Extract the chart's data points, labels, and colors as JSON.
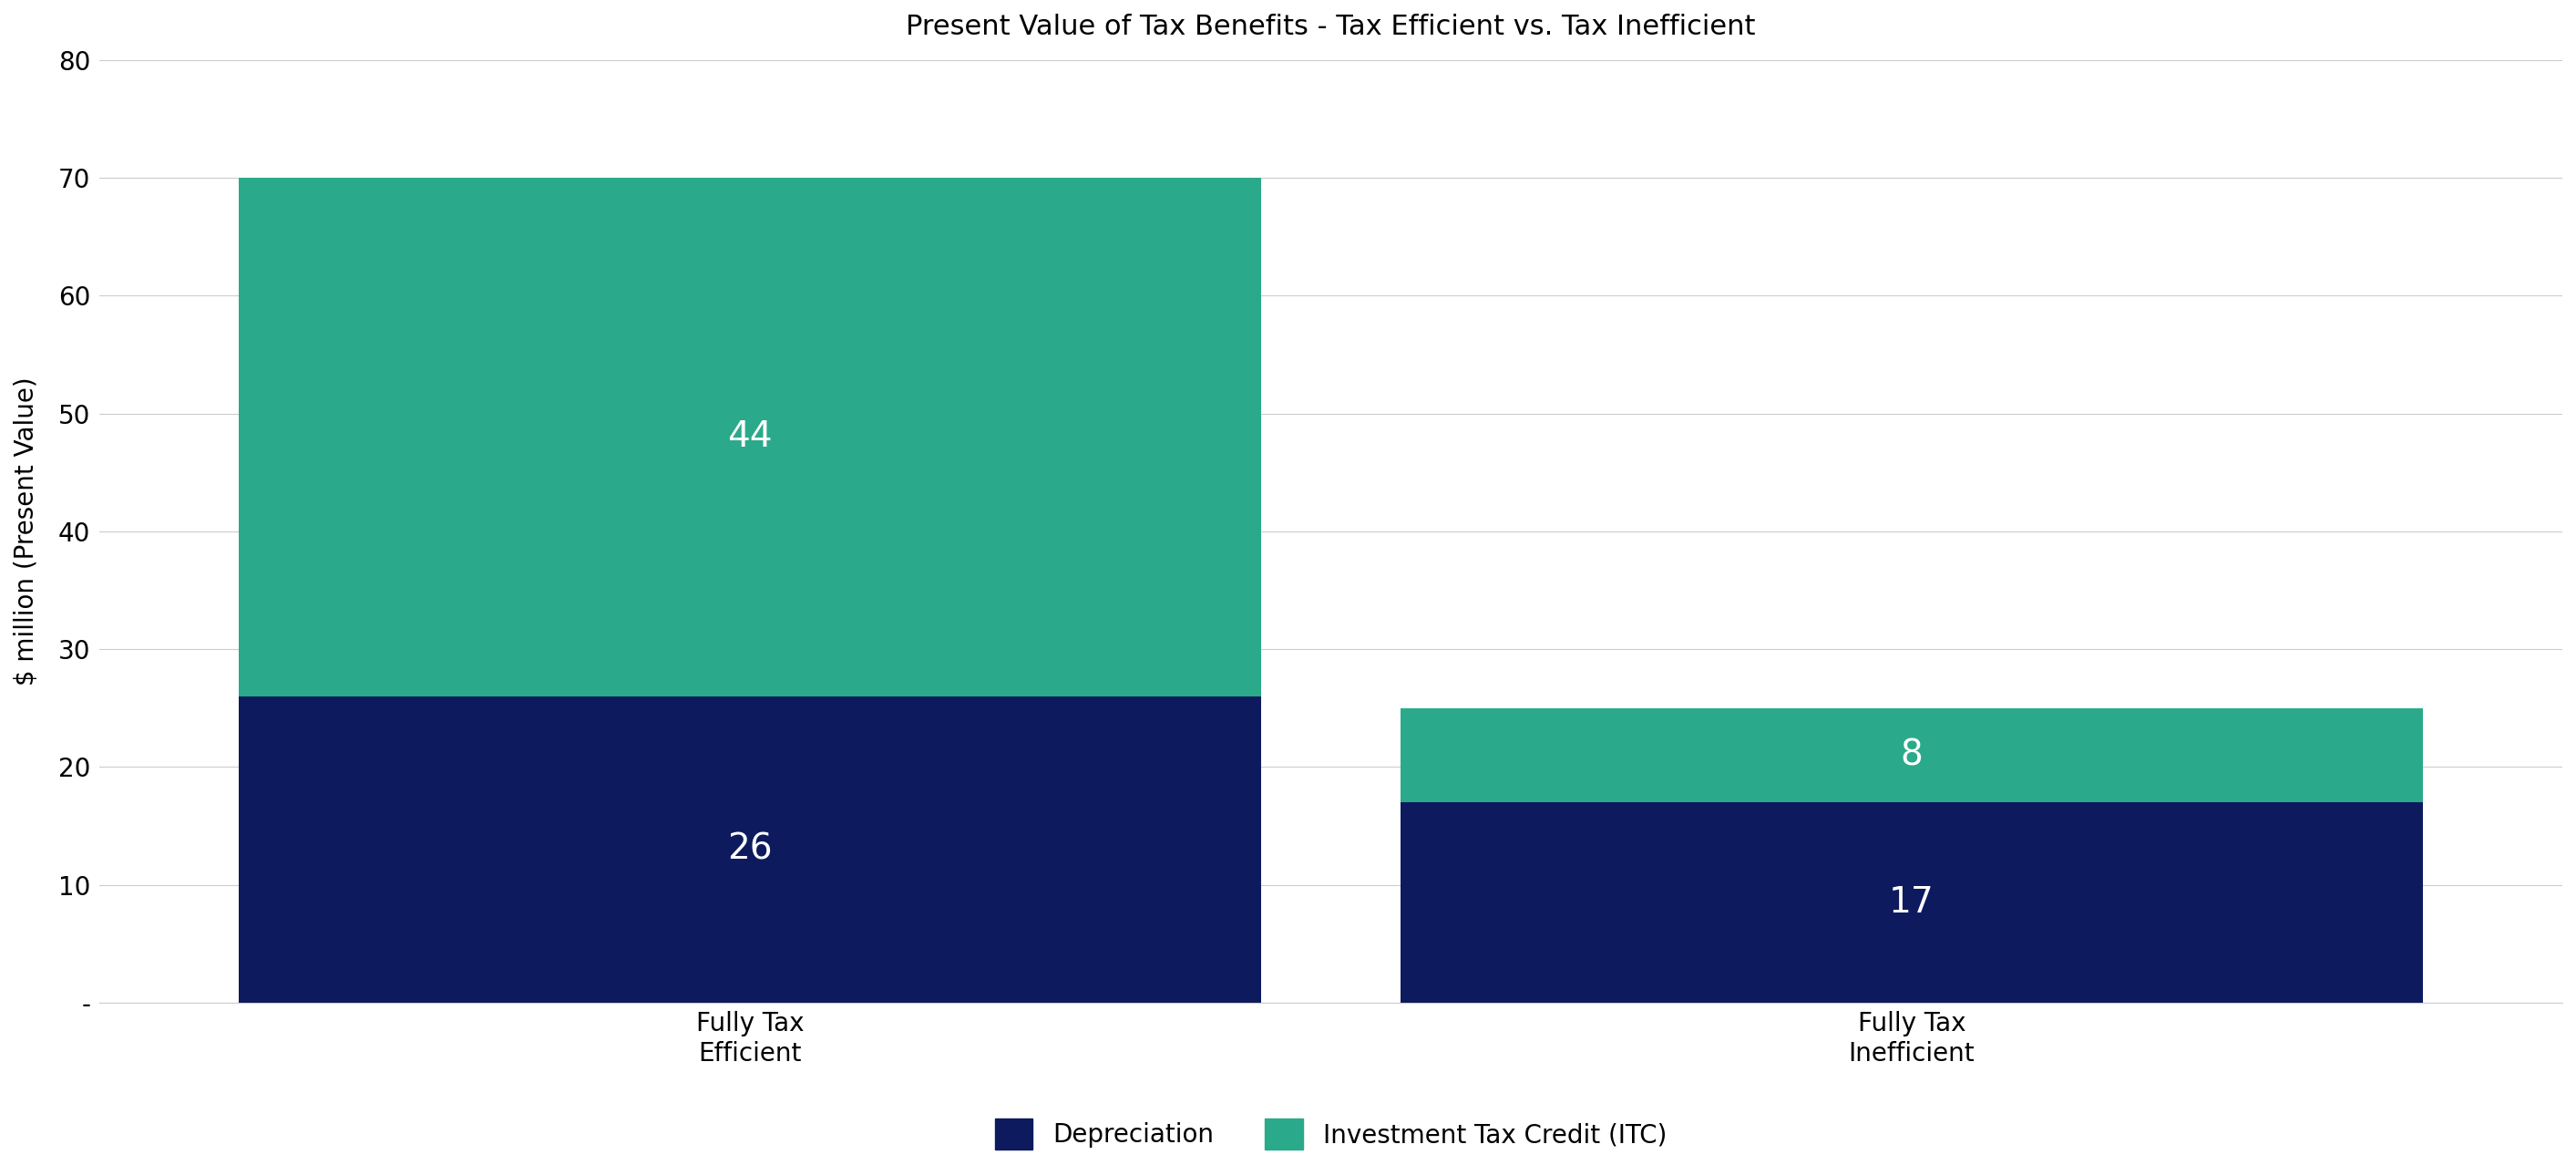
{
  "title": "Present Value of Tax Benefits - Tax Efficient vs. Tax Inefficient",
  "categories": [
    "Fully Tax\nEfficient",
    "Fully Tax\nInefficient"
  ],
  "depreciation_values": [
    26,
    17
  ],
  "itc_values": [
    44,
    8
  ],
  "depreciation_color": "#0d1b5e",
  "itc_color": "#2aaa8a",
  "ylabel": "$ million (Present Value)",
  "ylim": [
    0,
    80
  ],
  "yticks": [
    0,
    10,
    20,
    30,
    40,
    50,
    60,
    70,
    80
  ],
  "ytick_labels": [
    "-",
    "10",
    "20",
    "30",
    "40",
    "50",
    "60",
    "70",
    "80"
  ],
  "legend_labels": [
    "Depreciation",
    "Investment Tax Credit (ITC)"
  ],
  "label_color": "#ffffff",
  "label_fontsize": 28,
  "title_fontsize": 22,
  "ylabel_fontsize": 20,
  "tick_fontsize": 20,
  "legend_fontsize": 20,
  "background_color": "#ffffff",
  "grid_color": "#cccccc",
  "x_positions": [
    0.28,
    0.78
  ],
  "bar_width": 0.44,
  "xlim": [
    0.0,
    1.06
  ]
}
